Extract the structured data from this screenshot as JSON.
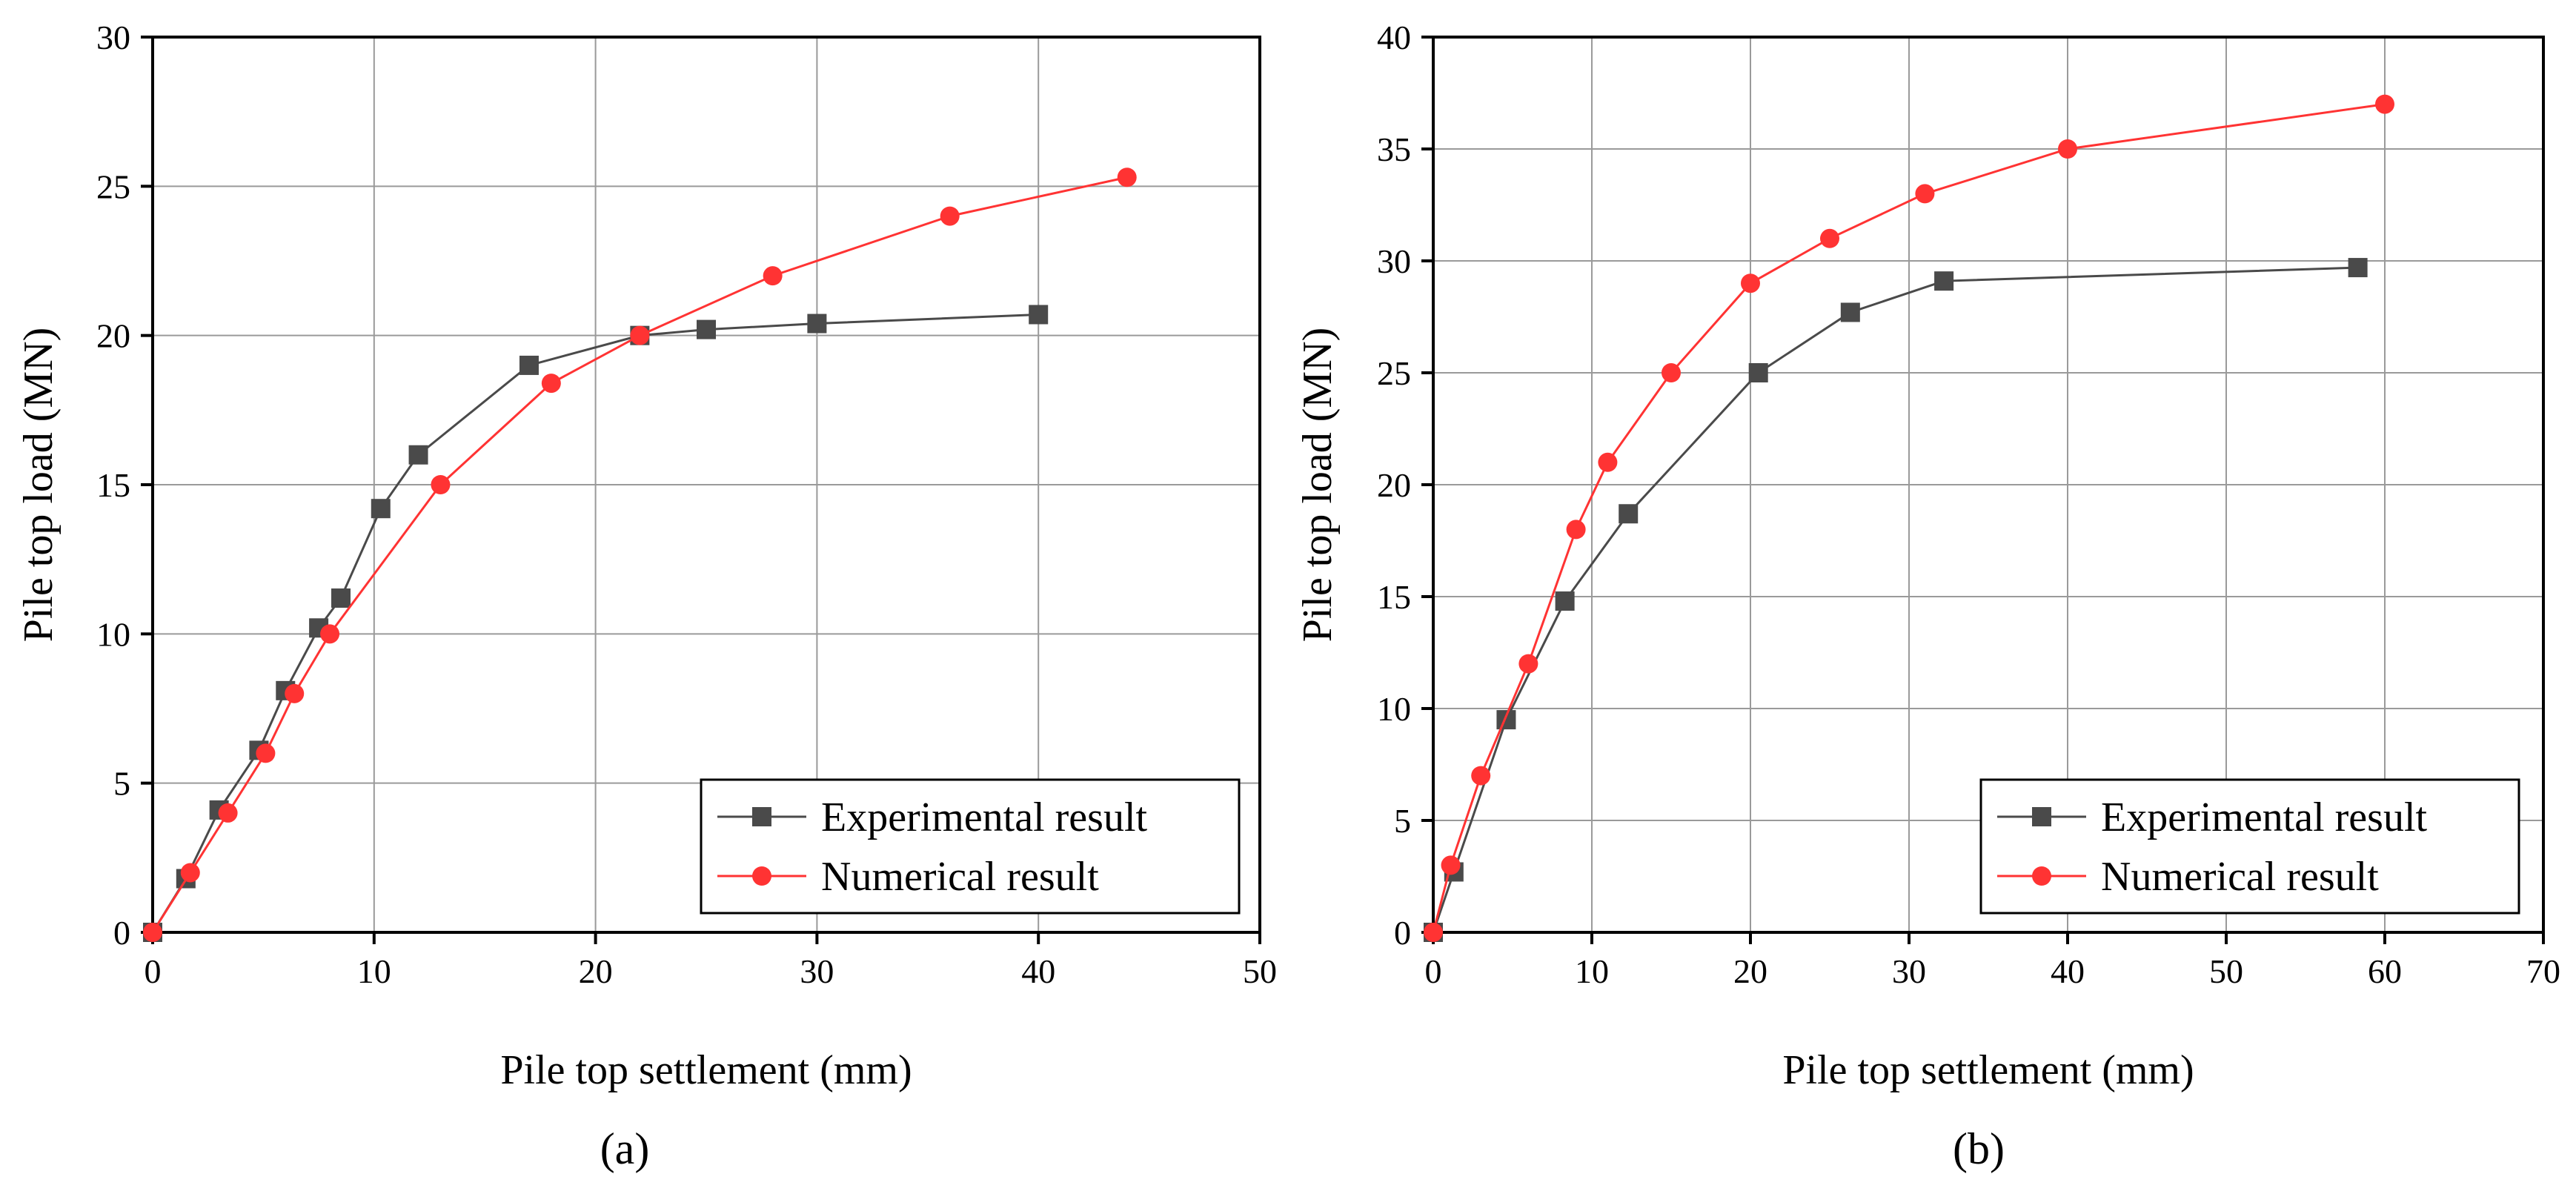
{
  "chart_data": [
    {
      "type": "line",
      "panel_label": "(a)",
      "xlabel": "Pile top settlement (mm)",
      "ylabel": "Pile top load (MN)",
      "xlim": [
        0,
        50
      ],
      "ylim": [
        0,
        30
      ],
      "xticks": [
        0,
        10,
        20,
        30,
        40,
        50
      ],
      "yticks": [
        0,
        5,
        10,
        15,
        20,
        25,
        30
      ],
      "grid": true,
      "legend_position": "bottom-right",
      "series": [
        {
          "name": "Experimental result",
          "marker": "square",
          "color": "#4a4a4a",
          "x": [
            0,
            1.5,
            3,
            4.8,
            6,
            7.5,
            8.5,
            10.3,
            12,
            17,
            22,
            25,
            30,
            40
          ],
          "y": [
            0,
            1.8,
            4.1,
            6.1,
            8.1,
            10.2,
            11.2,
            14.2,
            16,
            19,
            20,
            20.2,
            20.4,
            20.7
          ]
        },
        {
          "name": "Numerical result",
          "marker": "circle",
          "color": "#ff3333",
          "x": [
            0,
            1.7,
            3.4,
            5.1,
            6.4,
            8,
            13,
            18,
            22,
            28,
            36,
            44
          ],
          "y": [
            0,
            2,
            4,
            6,
            8,
            10,
            15,
            18.4,
            20,
            22,
            24,
            25.3
          ]
        }
      ]
    },
    {
      "type": "line",
      "panel_label": "(b)",
      "xlabel": "Pile top settlement (mm)",
      "ylabel": "Pile top load (MN)",
      "xlim": [
        0,
        70
      ],
      "ylim": [
        0,
        40
      ],
      "xticks": [
        0,
        10,
        20,
        30,
        40,
        50,
        60,
        70
      ],
      "yticks": [
        0,
        5,
        10,
        15,
        20,
        25,
        30,
        35,
        40
      ],
      "grid": true,
      "legend_position": "bottom-right",
      "series": [
        {
          "name": "Experimental result",
          "marker": "square",
          "color": "#4a4a4a",
          "x": [
            0,
            1.3,
            4.6,
            8.3,
            12.3,
            20.5,
            26.3,
            32.2,
            58.3
          ],
          "y": [
            0,
            2.7,
            9.5,
            14.8,
            18.7,
            25,
            27.7,
            29.1,
            29.7
          ]
        },
        {
          "name": "Numerical result",
          "marker": "circle",
          "color": "#ff3333",
          "x": [
            0,
            1.1,
            3,
            6,
            9,
            11,
            15,
            20,
            25,
            31,
            40,
            60
          ],
          "y": [
            0,
            3,
            7,
            12,
            18,
            21,
            25,
            29,
            31,
            33,
            35,
            37
          ]
        }
      ]
    }
  ]
}
